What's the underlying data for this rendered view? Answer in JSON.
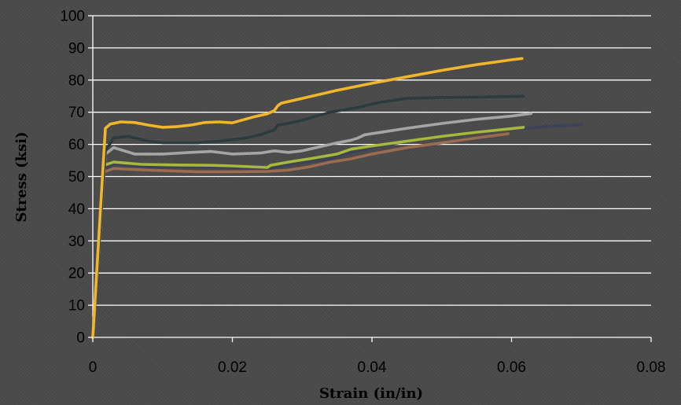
{
  "chart_data": {
    "type": "line",
    "title": "",
    "xlabel": "Strain (in/in)",
    "ylabel": "Stress (ksi)",
    "xlim": [
      0,
      0.08
    ],
    "ylim": [
      0,
      100
    ],
    "x_ticks": [
      0,
      0.02,
      0.04,
      0.06,
      0.08
    ],
    "x_tick_labels": [
      "0",
      "0.02",
      "0.04",
      "0.06",
      "0.08"
    ],
    "y_ticks": [
      0,
      10,
      20,
      30,
      40,
      50,
      60,
      70,
      80,
      90,
      100
    ],
    "y_tick_labels": [
      "0",
      "10",
      "20",
      "30",
      "40",
      "50",
      "60",
      "70",
      "80",
      "90",
      "100"
    ],
    "grid": true,
    "legend": "none",
    "series": [
      {
        "color": "#3c4258",
        "points": [
          [
            0,
            0
          ],
          [
            0.0016,
            52
          ],
          [
            0.003,
            54
          ],
          [
            0.008,
            53
          ],
          [
            0.015,
            53
          ],
          [
            0.02,
            52.8
          ],
          [
            0.025,
            52.6
          ],
          [
            0.027,
            53.2
          ],
          [
            0.03,
            54.5
          ],
          [
            0.034,
            55.5
          ],
          [
            0.036,
            57
          ],
          [
            0.04,
            59
          ],
          [
            0.045,
            61
          ],
          [
            0.05,
            62.6
          ],
          [
            0.055,
            64
          ],
          [
            0.06,
            64.8
          ],
          [
            0.065,
            65.5
          ],
          [
            0.07,
            66.2
          ]
        ]
      },
      {
        "color": "#9c6b50",
        "points": [
          [
            0,
            0
          ],
          [
            0.0016,
            51.5
          ],
          [
            0.003,
            52.5
          ],
          [
            0.008,
            52
          ],
          [
            0.015,
            51.5
          ],
          [
            0.02,
            51.5
          ],
          [
            0.025,
            51.6
          ],
          [
            0.028,
            52
          ],
          [
            0.031,
            53
          ],
          [
            0.034,
            54.5
          ],
          [
            0.037,
            55.5
          ],
          [
            0.04,
            57
          ],
          [
            0.045,
            59
          ],
          [
            0.05,
            60.5
          ],
          [
            0.055,
            62
          ],
          [
            0.0595,
            63.3
          ]
        ]
      },
      {
        "color": "#a7b83a",
        "points": [
          [
            0,
            0
          ],
          [
            0.0016,
            53.5
          ],
          [
            0.003,
            54.5
          ],
          [
            0.007,
            53.8
          ],
          [
            0.012,
            53.6
          ],
          [
            0.017,
            53.5
          ],
          [
            0.02,
            53.3
          ],
          [
            0.025,
            52.8
          ],
          [
            0.0255,
            53.5
          ],
          [
            0.028,
            54.5
          ],
          [
            0.031,
            55.5
          ],
          [
            0.035,
            57
          ],
          [
            0.037,
            58.5
          ],
          [
            0.04,
            59.5
          ],
          [
            0.045,
            61
          ],
          [
            0.05,
            62.5
          ],
          [
            0.055,
            63.8
          ],
          [
            0.06,
            64.9
          ],
          [
            0.0617,
            65.3
          ]
        ]
      },
      {
        "color": "#a5a5a5",
        "points": [
          [
            0,
            0
          ],
          [
            0.0018,
            57
          ],
          [
            0.003,
            59
          ],
          [
            0.006,
            57
          ],
          [
            0.01,
            57
          ],
          [
            0.014,
            57.5
          ],
          [
            0.017,
            57.8
          ],
          [
            0.02,
            57
          ],
          [
            0.024,
            57.3
          ],
          [
            0.026,
            58
          ],
          [
            0.028,
            57.5
          ],
          [
            0.03,
            58
          ],
          [
            0.032,
            59
          ],
          [
            0.035,
            60.5
          ],
          [
            0.037,
            61.3
          ],
          [
            0.038,
            62
          ],
          [
            0.039,
            63
          ],
          [
            0.045,
            65
          ],
          [
            0.05,
            66.5
          ],
          [
            0.055,
            67.8
          ],
          [
            0.06,
            68.8
          ],
          [
            0.0628,
            69.6
          ]
        ]
      },
      {
        "color": "#2a3c3e",
        "points": [
          [
            0,
            0
          ],
          [
            0.0018,
            58
          ],
          [
            0.003,
            62
          ],
          [
            0.005,
            62.5
          ],
          [
            0.008,
            61
          ],
          [
            0.01,
            60.5
          ],
          [
            0.015,
            60.5
          ],
          [
            0.018,
            61
          ],
          [
            0.02,
            61.5
          ],
          [
            0.022,
            62
          ],
          [
            0.024,
            63
          ],
          [
            0.026,
            64.5
          ],
          [
            0.0265,
            66
          ],
          [
            0.028,
            66.5
          ],
          [
            0.03,
            67.5
          ],
          [
            0.034,
            70
          ],
          [
            0.038,
            71.5
          ],
          [
            0.041,
            73
          ],
          [
            0.045,
            74.3
          ],
          [
            0.05,
            74.6
          ],
          [
            0.055,
            74.7
          ],
          [
            0.0617,
            75
          ]
        ]
      },
      {
        "color": "#f1b62a",
        "points": [
          [
            0,
            0
          ],
          [
            0.0018,
            65
          ],
          [
            0.0025,
            66.3
          ],
          [
            0.004,
            67
          ],
          [
            0.006,
            66.8
          ],
          [
            0.008,
            66
          ],
          [
            0.01,
            65.3
          ],
          [
            0.012,
            65.5
          ],
          [
            0.014,
            66
          ],
          [
            0.016,
            66.8
          ],
          [
            0.018,
            67
          ],
          [
            0.02,
            66.7
          ],
          [
            0.021,
            67.3
          ],
          [
            0.023,
            68.5
          ],
          [
            0.025,
            69.5
          ],
          [
            0.026,
            70.5
          ],
          [
            0.0265,
            72
          ],
          [
            0.027,
            72.8
          ],
          [
            0.03,
            74.3
          ],
          [
            0.035,
            76.8
          ],
          [
            0.04,
            79
          ],
          [
            0.045,
            81
          ],
          [
            0.05,
            83
          ],
          [
            0.055,
            84.8
          ],
          [
            0.06,
            86.3
          ],
          [
            0.0615,
            86.7
          ]
        ]
      }
    ]
  }
}
